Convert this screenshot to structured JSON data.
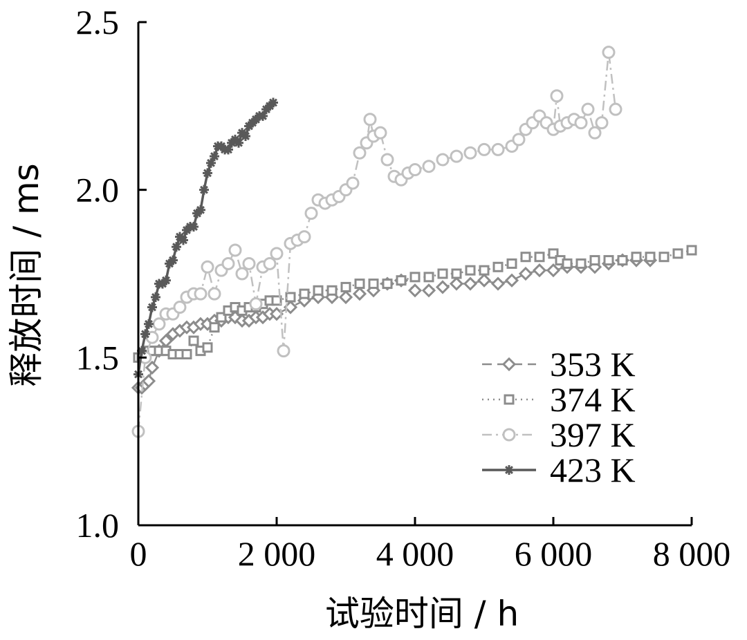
{
  "chart_data": {
    "type": "line",
    "xlabel": "试验时间 / h",
    "ylabel": "释放时间 / ms",
    "xlim": [
      0,
      8000
    ],
    "ylim": [
      1.0,
      2.5
    ],
    "x_ticks": [
      0,
      2000,
      4000,
      6000,
      8000
    ],
    "x_tick_labels": [
      "0",
      "2 000",
      "4 000",
      "6 000",
      "8 000"
    ],
    "y_ticks": [
      1.0,
      1.5,
      2.0,
      2.5
    ],
    "y_tick_labels": [
      "1.0",
      "1.5",
      "2.0",
      "2.5"
    ],
    "grid": false,
    "legend_position": "bottom-right",
    "series": [
      {
        "name": "353 K",
        "marker": "diamond",
        "line_style": "dashed",
        "color": "#8c8c8c",
        "x": [
          0,
          50,
          100,
          150,
          200,
          300,
          400,
          500,
          600,
          700,
          800,
          900,
          1000,
          1100,
          1200,
          1300,
          1400,
          1500,
          1600,
          1700,
          1800,
          1900,
          2000,
          2200,
          2400,
          2600,
          2800,
          3000,
          3200,
          3400,
          3600,
          3800,
          4000,
          4200,
          4400,
          4600,
          4800,
          5000,
          5200,
          5400,
          5600,
          5800,
          6000,
          6200,
          6400,
          6600,
          6800,
          7000,
          7200,
          7400
        ],
        "y": [
          1.41,
          1.41,
          1.42,
          1.43,
          1.47,
          1.52,
          1.55,
          1.57,
          1.58,
          1.59,
          1.59,
          1.6,
          1.6,
          1.61,
          1.61,
          1.62,
          1.62,
          1.61,
          1.61,
          1.62,
          1.62,
          1.63,
          1.63,
          1.65,
          1.67,
          1.68,
          1.68,
          1.68,
          1.69,
          1.7,
          1.72,
          1.73,
          1.7,
          1.7,
          1.71,
          1.72,
          1.72,
          1.73,
          1.72,
          1.73,
          1.75,
          1.76,
          1.76,
          1.77,
          1.77,
          1.77,
          1.78,
          1.79,
          1.79,
          1.79
        ]
      },
      {
        "name": "374 K",
        "marker": "square",
        "line_style": "dotted",
        "color": "#8c8c8c",
        "x": [
          0,
          50,
          100,
          150,
          200,
          300,
          400,
          500,
          600,
          700,
          800,
          900,
          1000,
          1100,
          1200,
          1300,
          1400,
          1500,
          1600,
          1700,
          1800,
          1900,
          2000,
          2200,
          2400,
          2600,
          2800,
          3000,
          3200,
          3400,
          3600,
          3800,
          4000,
          4200,
          4400,
          4600,
          4800,
          5000,
          5200,
          5400,
          5600,
          5800,
          6000,
          6100,
          6200,
          6400,
          6600,
          6800,
          7000,
          7200,
          7400,
          7600,
          7800,
          8000
        ],
        "y": [
          1.5,
          1.5,
          1.51,
          1.52,
          1.52,
          1.52,
          1.52,
          1.51,
          1.51,
          1.51,
          1.55,
          1.52,
          1.53,
          1.59,
          1.62,
          1.64,
          1.65,
          1.64,
          1.65,
          1.65,
          1.66,
          1.67,
          1.67,
          1.68,
          1.69,
          1.7,
          1.7,
          1.71,
          1.72,
          1.72,
          1.72,
          1.73,
          1.74,
          1.74,
          1.75,
          1.75,
          1.76,
          1.76,
          1.77,
          1.78,
          1.8,
          1.8,
          1.81,
          1.79,
          1.78,
          1.78,
          1.79,
          1.79,
          1.79,
          1.8,
          1.8,
          1.8,
          1.81,
          1.82
        ]
      },
      {
        "name": "397 K",
        "marker": "circle",
        "line_style": "dash-dot",
        "color": "#c0c0c0",
        "x": [
          0,
          100,
          200,
          300,
          400,
          500,
          600,
          700,
          800,
          900,
          1000,
          1100,
          1200,
          1300,
          1400,
          1500,
          1600,
          1700,
          1800,
          1900,
          2000,
          2100,
          2200,
          2300,
          2400,
          2500,
          2600,
          2700,
          2800,
          2900,
          3000,
          3100,
          3200,
          3300,
          3350,
          3400,
          3500,
          3600,
          3700,
          3800,
          3900,
          4000,
          4200,
          4400,
          4600,
          4800,
          5000,
          5200,
          5400,
          5500,
          5600,
          5700,
          5800,
          5900,
          6000,
          6050,
          6100,
          6200,
          6300,
          6400,
          6500,
          6600,
          6700,
          6800,
          6900
        ],
        "y": [
          1.28,
          1.5,
          1.56,
          1.6,
          1.63,
          1.63,
          1.65,
          1.68,
          1.69,
          1.69,
          1.77,
          1.69,
          1.76,
          1.78,
          1.82,
          1.75,
          1.78,
          1.66,
          1.77,
          1.78,
          1.81,
          1.52,
          1.84,
          1.85,
          1.86,
          1.93,
          1.97,
          1.96,
          1.97,
          1.98,
          2.0,
          2.02,
          2.11,
          2.14,
          2.21,
          2.16,
          2.17,
          2.09,
          2.04,
          2.03,
          2.05,
          2.06,
          2.07,
          2.09,
          2.1,
          2.11,
          2.12,
          2.12,
          2.13,
          2.15,
          2.18,
          2.2,
          2.22,
          2.2,
          2.18,
          2.28,
          2.19,
          2.2,
          2.21,
          2.2,
          2.24,
          2.17,
          2.2,
          2.41,
          2.24
        ]
      },
      {
        "name": "423 K",
        "marker": "asterisk",
        "line_style": "solid",
        "color": "#595959",
        "x": [
          0,
          50,
          100,
          150,
          200,
          250,
          300,
          350,
          400,
          450,
          500,
          550,
          600,
          650,
          700,
          750,
          800,
          850,
          900,
          950,
          1000,
          1050,
          1100,
          1150,
          1200,
          1250,
          1300,
          1350,
          1400,
          1450,
          1500,
          1550,
          1600,
          1650,
          1700,
          1750,
          1800,
          1850,
          1900,
          1950
        ],
        "y": [
          1.45,
          1.52,
          1.57,
          1.6,
          1.65,
          1.68,
          1.72,
          1.72,
          1.73,
          1.78,
          1.79,
          1.83,
          1.86,
          1.85,
          1.88,
          1.89,
          1.89,
          1.93,
          1.94,
          2.0,
          2.05,
          2.08,
          2.1,
          2.13,
          2.13,
          2.12,
          2.12,
          2.14,
          2.15,
          2.14,
          2.17,
          2.16,
          2.19,
          2.2,
          2.21,
          2.22,
          2.22,
          2.24,
          2.25,
          2.26
        ]
      }
    ]
  }
}
